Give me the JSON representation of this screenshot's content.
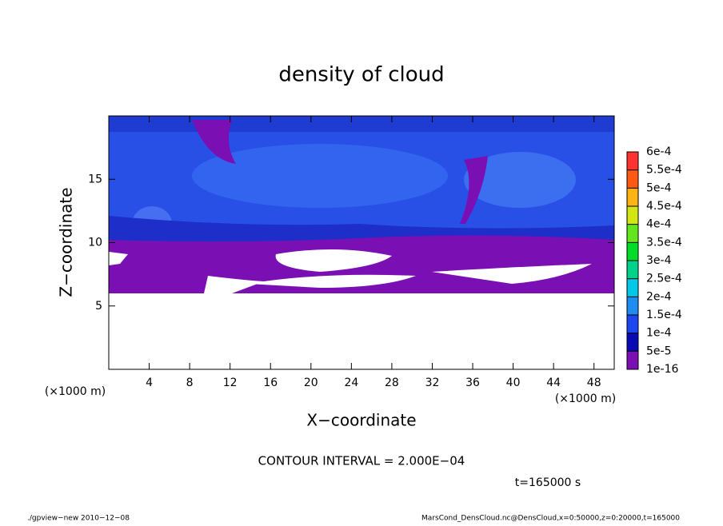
{
  "chart_data": {
    "type": "contour",
    "title": "density of cloud",
    "x_label": "X−coordinate",
    "y_label": "Z−coordinate",
    "x_unit_left": "(×1000 m)",
    "x_unit_right": "(×1000 m)",
    "xlim": [
      0,
      50
    ],
    "ylim": [
      0,
      20
    ],
    "xticks": [
      4,
      8,
      12,
      16,
      20,
      24,
      28,
      32,
      36,
      40,
      44,
      48
    ],
    "yticks": [
      5,
      10,
      15
    ],
    "colorbar": {
      "levels": [
        {
          "value": 1e-16,
          "label": "1e-16"
        },
        {
          "value": 5e-05,
          "label": "5e-5"
        },
        {
          "value": 0.0001,
          "label": "1e-4"
        },
        {
          "value": 0.00015,
          "label": "1.5e-4"
        },
        {
          "value": 0.0002,
          "label": "2e-4"
        },
        {
          "value": 0.00025,
          "label": "2.5e-4"
        },
        {
          "value": 0.0003,
          "label": "3e-4"
        },
        {
          "value": 0.00035,
          "label": "3.5e-4"
        },
        {
          "value": 0.0004,
          "label": "4e-4"
        },
        {
          "value": 0.00045,
          "label": "4.5e-4"
        },
        {
          "value": 0.0005,
          "label": "5e-4"
        },
        {
          "value": 0.00055,
          "label": "5.5e-4"
        },
        {
          "value": 0.0006,
          "label": "6e-4"
        }
      ],
      "colors": [
        "#7a10b4",
        "#0a0ab4",
        "#1e46f0",
        "#1e8cf0",
        "#00c8e6",
        "#00d28c",
        "#00dc28",
        "#64e61e",
        "#d2e614",
        "#ffb414",
        "#ff5a14",
        "#ff3232",
        "#ff8c8c"
      ]
    },
    "annotation": "CONTOUR INTERVAL = 2.000E−04",
    "time_label": "t=165000 s",
    "footer_left": "./gpview−new  2010−12−08",
    "footer_right": "MarsCond_DensCloud.nc@DensCloud,x=0:50000,z=0:20000,t=165000"
  }
}
